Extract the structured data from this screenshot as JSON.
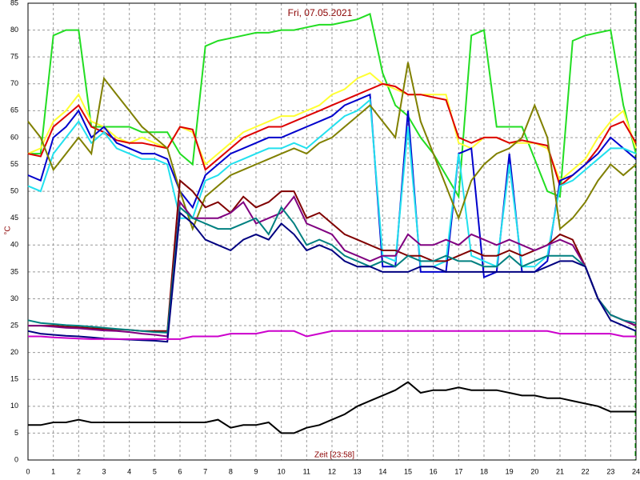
{
  "chart_data": {
    "type": "line",
    "title": "Fri, 07.05.2021",
    "xlabel": "Zeit [23:58]",
    "ylabel": "°C",
    "x": [
      0,
      0.5,
      1,
      1.5,
      2,
      2.5,
      3,
      3.5,
      4,
      4.5,
      5,
      5.5,
      6,
      6.5,
      7,
      7.5,
      8,
      8.5,
      9,
      9.5,
      10,
      10.5,
      11,
      11.5,
      12,
      12.5,
      13,
      13.5,
      14,
      14.5,
      15,
      15.5,
      16,
      16.5,
      17,
      17.5,
      18,
      18.5,
      19,
      19.5,
      20,
      20.5,
      21,
      21.5,
      22,
      22.5,
      23,
      23.5,
      24
    ],
    "xlim": [
      0,
      24
    ],
    "ylim": [
      0,
      85
    ],
    "xticks": [
      0,
      1,
      2,
      3,
      4,
      5,
      6,
      7,
      8,
      9,
      10,
      11,
      12,
      13,
      14,
      15,
      16,
      17,
      18,
      19,
      20,
      21,
      22,
      23,
      24
    ],
    "yticks": [
      0,
      5,
      10,
      15,
      20,
      25,
      30,
      35,
      40,
      45,
      50,
      55,
      60,
      65,
      70,
      75,
      80,
      85
    ],
    "grid": true,
    "series": [
      {
        "color": "#22dd22",
        "values": [
          57,
          57,
          79,
          80,
          80,
          62,
          62,
          62,
          62,
          61,
          61,
          61,
          57,
          55,
          77,
          78,
          78.5,
          79,
          79.5,
          79.5,
          80,
          80,
          80.5,
          81,
          81,
          81.5,
          82,
          83,
          72,
          66,
          64,
          60,
          57,
          53,
          49,
          79,
          80,
          62,
          62,
          62,
          56,
          50,
          49,
          78,
          79,
          79.5,
          80,
          66,
          57
        ]
      },
      {
        "color": "#ffff33",
        "values": [
          57,
          58,
          63,
          65,
          68,
          63,
          62,
          60,
          59,
          60,
          59,
          58,
          62,
          61,
          55,
          57,
          59,
          61,
          62,
          63,
          64,
          64,
          65,
          66,
          68,
          69,
          71,
          72,
          70,
          69,
          68,
          68,
          68,
          68,
          59,
          58,
          60,
          60,
          59,
          59,
          59,
          58,
          52,
          54,
          56,
          60,
          63,
          65,
          58
        ]
      },
      {
        "color": "#dd0000",
        "values": [
          57,
          56.5,
          62,
          64,
          66,
          62,
          61,
          59.5,
          59,
          59,
          58.5,
          58,
          62,
          61.5,
          54,
          56,
          58,
          60,
          61,
          62,
          62,
          63,
          64,
          65,
          66,
          67,
          68,
          69,
          70,
          69.5,
          68,
          68,
          67.5,
          67,
          60,
          59,
          60,
          60,
          59,
          59.5,
          59,
          58.5,
          51,
          53,
          55,
          58,
          62,
          63,
          59
        ]
      },
      {
        "color": "#0000cc",
        "values": [
          53,
          52,
          60,
          62,
          65,
          60,
          62,
          59,
          58,
          57,
          57,
          56,
          50,
          47,
          53,
          55,
          57,
          58,
          59,
          60,
          60,
          61,
          62,
          63,
          64,
          66,
          67,
          68,
          36,
          36,
          65,
          35,
          35,
          35,
          57,
          58,
          34,
          35,
          57,
          35,
          35,
          37,
          52,
          53,
          55,
          57,
          60,
          58,
          56
        ]
      },
      {
        "color": "#22e0ee",
        "values": [
          51,
          50,
          57,
          60,
          63,
          59,
          61,
          58,
          57,
          56,
          56,
          55,
          45,
          45,
          52,
          53,
          55,
          56,
          57,
          58,
          58,
          59,
          58,
          60,
          62,
          64,
          65,
          67,
          38,
          37,
          62,
          36,
          36,
          37,
          57,
          38,
          37,
          36,
          55,
          36,
          36,
          38,
          51,
          52,
          54,
          56,
          58,
          58,
          57
        ]
      },
      {
        "color": "#808000",
        "values": [
          63,
          60,
          54,
          57,
          60,
          57,
          71,
          68,
          65,
          62,
          60,
          58,
          50,
          43,
          49,
          51,
          53,
          54,
          55,
          56,
          57,
          58,
          57,
          59,
          60,
          62,
          64,
          66,
          63,
          60,
          74,
          63,
          57,
          51,
          45,
          52,
          55,
          57,
          58,
          60,
          66,
          60,
          43,
          45,
          48,
          52,
          55,
          53,
          55
        ]
      },
      {
        "color": "#800000",
        "values": [
          25,
          25,
          25,
          24.8,
          24.7,
          24.5,
          24.4,
          24.3,
          24.2,
          24,
          24,
          24,
          52,
          50,
          47,
          48,
          46,
          49,
          47,
          48,
          50,
          50,
          45,
          46,
          44,
          42,
          41,
          40,
          39,
          39,
          38,
          38,
          37,
          37,
          38,
          39,
          38,
          38,
          39,
          38,
          39,
          40,
          42,
          41,
          36,
          30,
          27,
          26,
          25
        ]
      },
      {
        "color": "#800080",
        "values": [
          25,
          25,
          24.8,
          24.6,
          24.5,
          24.3,
          24.1,
          24,
          23.8,
          23.5,
          23.3,
          23,
          48,
          45,
          45,
          45,
          46,
          48,
          44,
          45,
          46,
          49,
          44,
          43,
          42,
          39,
          38,
          37,
          38,
          38,
          42,
          40,
          40,
          41,
          40,
          42,
          41,
          40,
          41,
          40,
          39,
          40,
          41,
          40,
          36,
          30,
          27,
          26,
          25
        ]
      },
      {
        "color": "#008080",
        "values": [
          26,
          25.5,
          25.3,
          25.1,
          25,
          24.8,
          24.6,
          24.4,
          24.2,
          24,
          23.8,
          23.7,
          47,
          45,
          44,
          43,
          43,
          44,
          45,
          42,
          47,
          44,
          40,
          41,
          40,
          38,
          37,
          36,
          37,
          36,
          38,
          37,
          37,
          38,
          37,
          37,
          36,
          36,
          38,
          36,
          37,
          38,
          38,
          38,
          36,
          30,
          27,
          26,
          25.5
        ]
      },
      {
        "color": "#000080",
        "values": [
          24,
          23.5,
          23.3,
          23.1,
          23,
          22.8,
          22.6,
          22.5,
          22.4,
          22.3,
          22.2,
          22,
          46,
          44,
          41,
          40,
          39,
          41,
          42,
          41,
          44,
          42,
          39,
          40,
          39,
          37,
          36,
          36,
          35,
          35,
          35,
          36,
          36,
          35,
          35,
          35,
          35,
          35,
          35,
          35,
          35,
          36,
          37,
          37,
          36,
          30,
          26,
          25,
          24
        ]
      },
      {
        "color": "#cc00cc",
        "values": [
          23,
          23,
          22.8,
          22.7,
          22.6,
          22.5,
          22.5,
          22.5,
          22.5,
          22.5,
          22.5,
          22.5,
          22.5,
          23,
          23,
          23,
          23.5,
          23.5,
          23.5,
          24,
          24,
          24,
          23,
          23.5,
          24,
          24,
          24,
          24,
          24,
          24,
          24,
          24,
          24,
          24,
          24,
          24,
          24,
          24,
          24,
          24,
          24,
          24,
          23.5,
          23.5,
          23.5,
          23.5,
          23.5,
          23,
          23
        ]
      },
      {
        "color": "#000000",
        "values": [
          6.5,
          6.5,
          7,
          7,
          7.5,
          7,
          7,
          7,
          7,
          7,
          7,
          7,
          7,
          7,
          7,
          7.5,
          6,
          6.5,
          6.5,
          7,
          5,
          5,
          6,
          6.5,
          7.5,
          8.5,
          10,
          11,
          12,
          13,
          14.5,
          12.5,
          13,
          13,
          13.5,
          13,
          13,
          13,
          12.5,
          12,
          12,
          11.5,
          11.5,
          11,
          10.5,
          10,
          9,
          9,
          9
        ]
      }
    ]
  }
}
